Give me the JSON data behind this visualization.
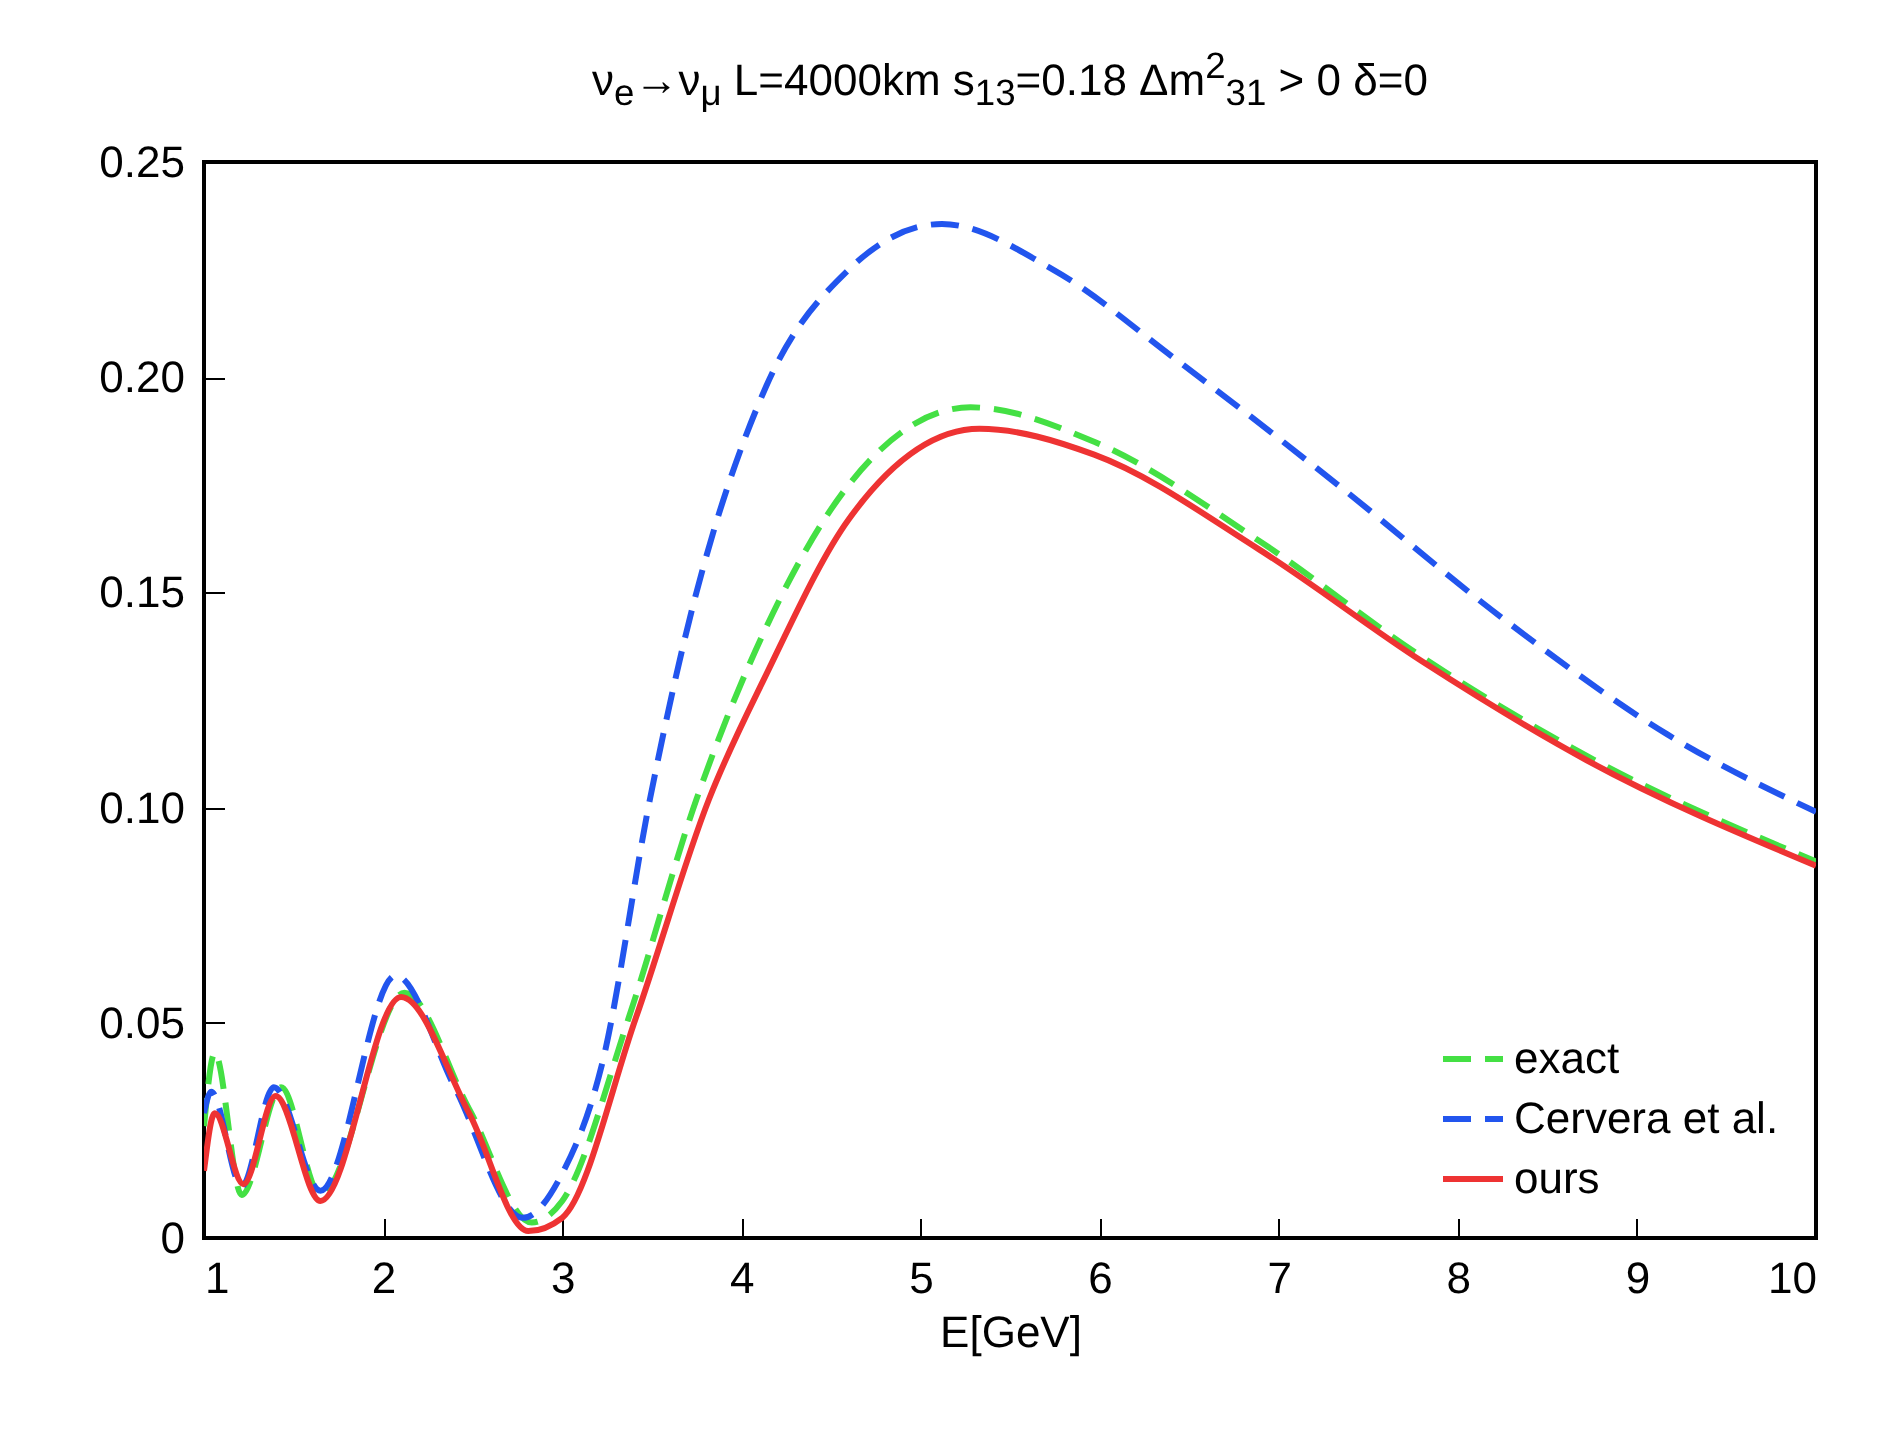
{
  "chart_data": {
    "type": "line",
    "title": "ν$_{e}$→ν$_{μ}$  L=4000km  s$_{13}$=0.18  Δm$^{2}$$_{31}$ > 0  δ=0",
    "xlabel": "E[GeV]",
    "xlim": [
      1,
      10
    ],
    "xticks": [
      1,
      2,
      3,
      4,
      5,
      6,
      7,
      8,
      9,
      10
    ],
    "ylim": [
      0,
      0.25
    ],
    "yticks": [
      0,
      0.05,
      {
        "value": 0.1,
        "label": "0.10"
      },
      0.15,
      {
        "value": 0.2,
        "label": "0.20"
      },
      0.25
    ],
    "grid": false,
    "legend": "bottom right",
    "marker": "none",
    "series": [
      {
        "name": "exact",
        "color": "#44e044",
        "line_style": "dashed",
        "x": [
          1,
          1.06,
          1.21,
          1.43,
          1.65,
          2.12,
          2.48,
          2.83,
          3.0,
          3.37,
          3.75,
          4.14,
          4.6,
          5.28,
          5.97,
          6.89,
          7.8,
          8.72,
          10
        ],
        "values": [
          0.026,
          0.043,
          0.01,
          0.035,
          0.01,
          0.057,
          0.03,
          0.0036,
          0.0086,
          0.051,
          0.102,
          0.142,
          0.175,
          0.193,
          0.185,
          0.162,
          0.135,
          0.112,
          0.0875
        ]
      },
      {
        "name": "Cervera et al.",
        "color": "#2255ee",
        "line_style": "dashed",
        "x": [
          1,
          1.04,
          1.21,
          1.39,
          1.65,
          2.07,
          2.4,
          2.78,
          3.0,
          3.22,
          3.49,
          3.68,
          4.14,
          4.6,
          5.12,
          5.74,
          6.43,
          7.33,
          8.25,
          9.17,
          10
        ],
        "values": [
          0.029,
          0.034,
          0.012,
          0.035,
          0.011,
          0.061,
          0.035,
          0.0047,
          0.015,
          0.04,
          0.102,
          0.1385,
          0.198,
          0.225,
          0.2356,
          0.225,
          0.204,
          0.175,
          0.144,
          0.117,
          0.099
        ]
      },
      {
        "name": "ours",
        "color": "#ee3333",
        "line_style": "solid",
        "x": [
          1,
          1.06,
          1.22,
          1.4,
          1.65,
          2.1,
          2.48,
          2.81,
          3.0,
          3.41,
          3.82,
          4.14,
          4.6,
          5.33,
          5.97,
          6.89,
          7.8,
          8.72,
          10
        ],
        "values": [
          0.0156,
          0.029,
          0.0125,
          0.033,
          0.0086,
          0.056,
          0.029,
          0.0016,
          0.0047,
          0.051,
          0.102,
          0.131,
          0.167,
          0.188,
          0.182,
          0.16,
          0.134,
          0.111,
          0.0865
        ]
      }
    ]
  }
}
